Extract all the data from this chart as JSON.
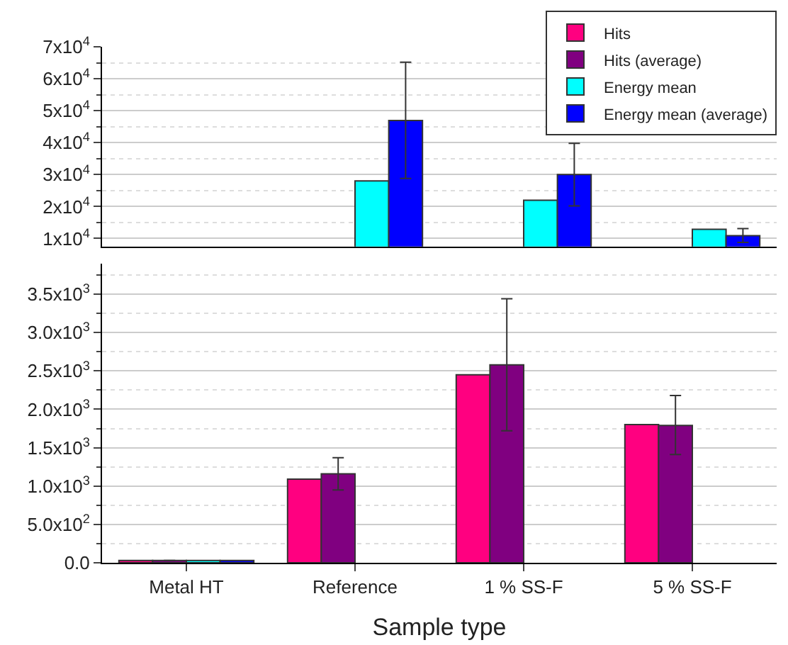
{
  "chart_data": [
    {
      "type": "bar",
      "categories": [
        null,
        null,
        null,
        null
      ],
      "ylim": [
        7500,
        70000
      ],
      "yticks": [
        {
          "value": 10000,
          "label": "1x10$^{4}$"
        },
        {
          "value": 20000,
          "label": "2x10$^{4}$"
        },
        {
          "value": 30000,
          "label": "3x10$^{4}$"
        },
        {
          "value": 40000,
          "label": "4x10$^{4}$"
        },
        {
          "value": 50000,
          "label": "5x10$^{4}$"
        },
        {
          "value": 60000,
          "label": "6x10$^{4}$"
        },
        {
          "value": 70000,
          "label": "7x10$^{4}$"
        }
      ],
      "grid": "y",
      "legend": "top right",
      "tick_labels": "y",
      "series": [
        {
          "name": "Hits",
          "color": "#ff0080",
          "values": [
            null,
            null,
            null,
            null
          ]
        },
        {
          "name": "Hits (average)",
          "color": "#800080",
          "values": [
            null,
            null,
            null,
            null
          ]
        },
        {
          "name": "Energy mean",
          "color": "#00ffff",
          "values": [
            null,
            28000,
            22000,
            12900
          ]
        },
        {
          "name": "Energy mean (average)",
          "color": "#0000ff",
          "values": [
            null,
            46900,
            30000,
            10900
          ],
          "errors": [
            null,
            [
              28800,
              65200
            ],
            [
              20200,
              39800
            ],
            [
              8800,
              13100
            ]
          ]
        }
      ]
    },
    {
      "type": "bar",
      "categories": [
        "Metal HT",
        "Reference",
        "1 % SS-F",
        "5 % SS-F"
      ],
      "xlabel": "Sample type",
      "ylim": [
        0,
        3900
      ],
      "yticks": [
        {
          "value": 0,
          "label": "0.0"
        },
        {
          "value": 500,
          "label": "5.0x10$^{2}$"
        },
        {
          "value": 1000,
          "label": "1.0x10$^{3}$"
        },
        {
          "value": 1500,
          "label": "1.5x10$^{3}$"
        },
        {
          "value": 2000,
          "label": "2.0x10$^{3}$"
        },
        {
          "value": 2500,
          "label": "2.5x10$^{3}$"
        },
        {
          "value": 3000,
          "label": "3.0x10$^{3}$"
        },
        {
          "value": 3500,
          "label": "3.5x10$^{3}$"
        }
      ],
      "grid": "y",
      "series": [
        {
          "color": "#ff0080",
          "values": [
            30,
            1090,
            2450,
            1800
          ]
        },
        {
          "color": "#800080",
          "values": [
            30,
            1160,
            2580,
            1790
          ],
          "errors": [
            null,
            [
              950,
              1370
            ],
            [
              1720,
              3440
            ],
            [
              1410,
              2180
            ]
          ]
        },
        {
          "color": "#00ffff",
          "values": [
            30,
            null,
            null,
            null
          ]
        },
        {
          "color": "#0000ff",
          "values": [
            30,
            null,
            null,
            null
          ]
        }
      ]
    }
  ]
}
